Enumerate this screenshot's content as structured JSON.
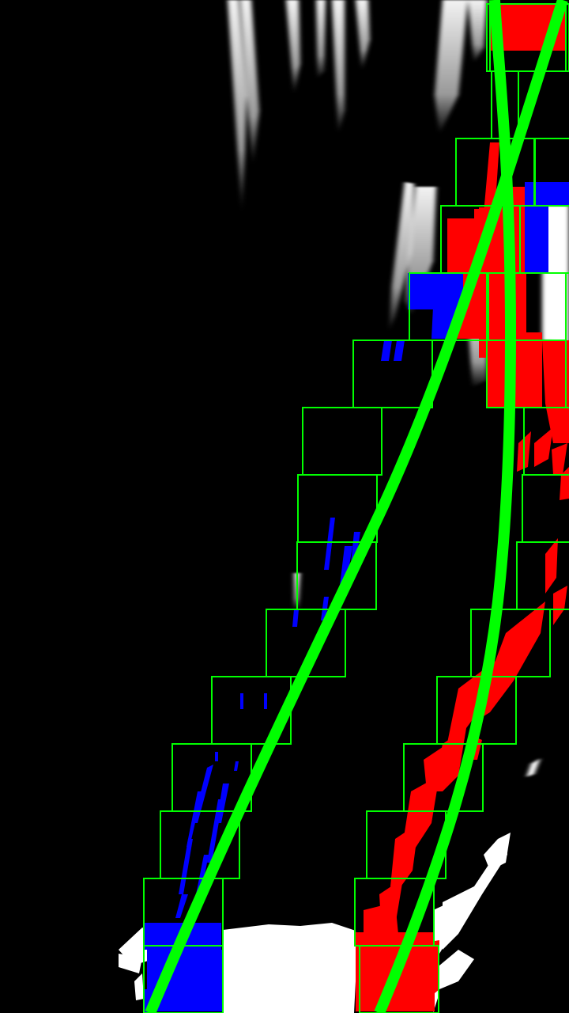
{
  "colors": {
    "background": "#000000",
    "binary_pixels": "#ffffff",
    "left_lane_pixels": "#0000ff",
    "right_lane_pixels": "#ff0000",
    "search_windows": "#00ff00",
    "fitted_polynomials": "#00ff00"
  },
  "search": {
    "left_window_count": 15,
    "right_window_count": 15
  }
}
